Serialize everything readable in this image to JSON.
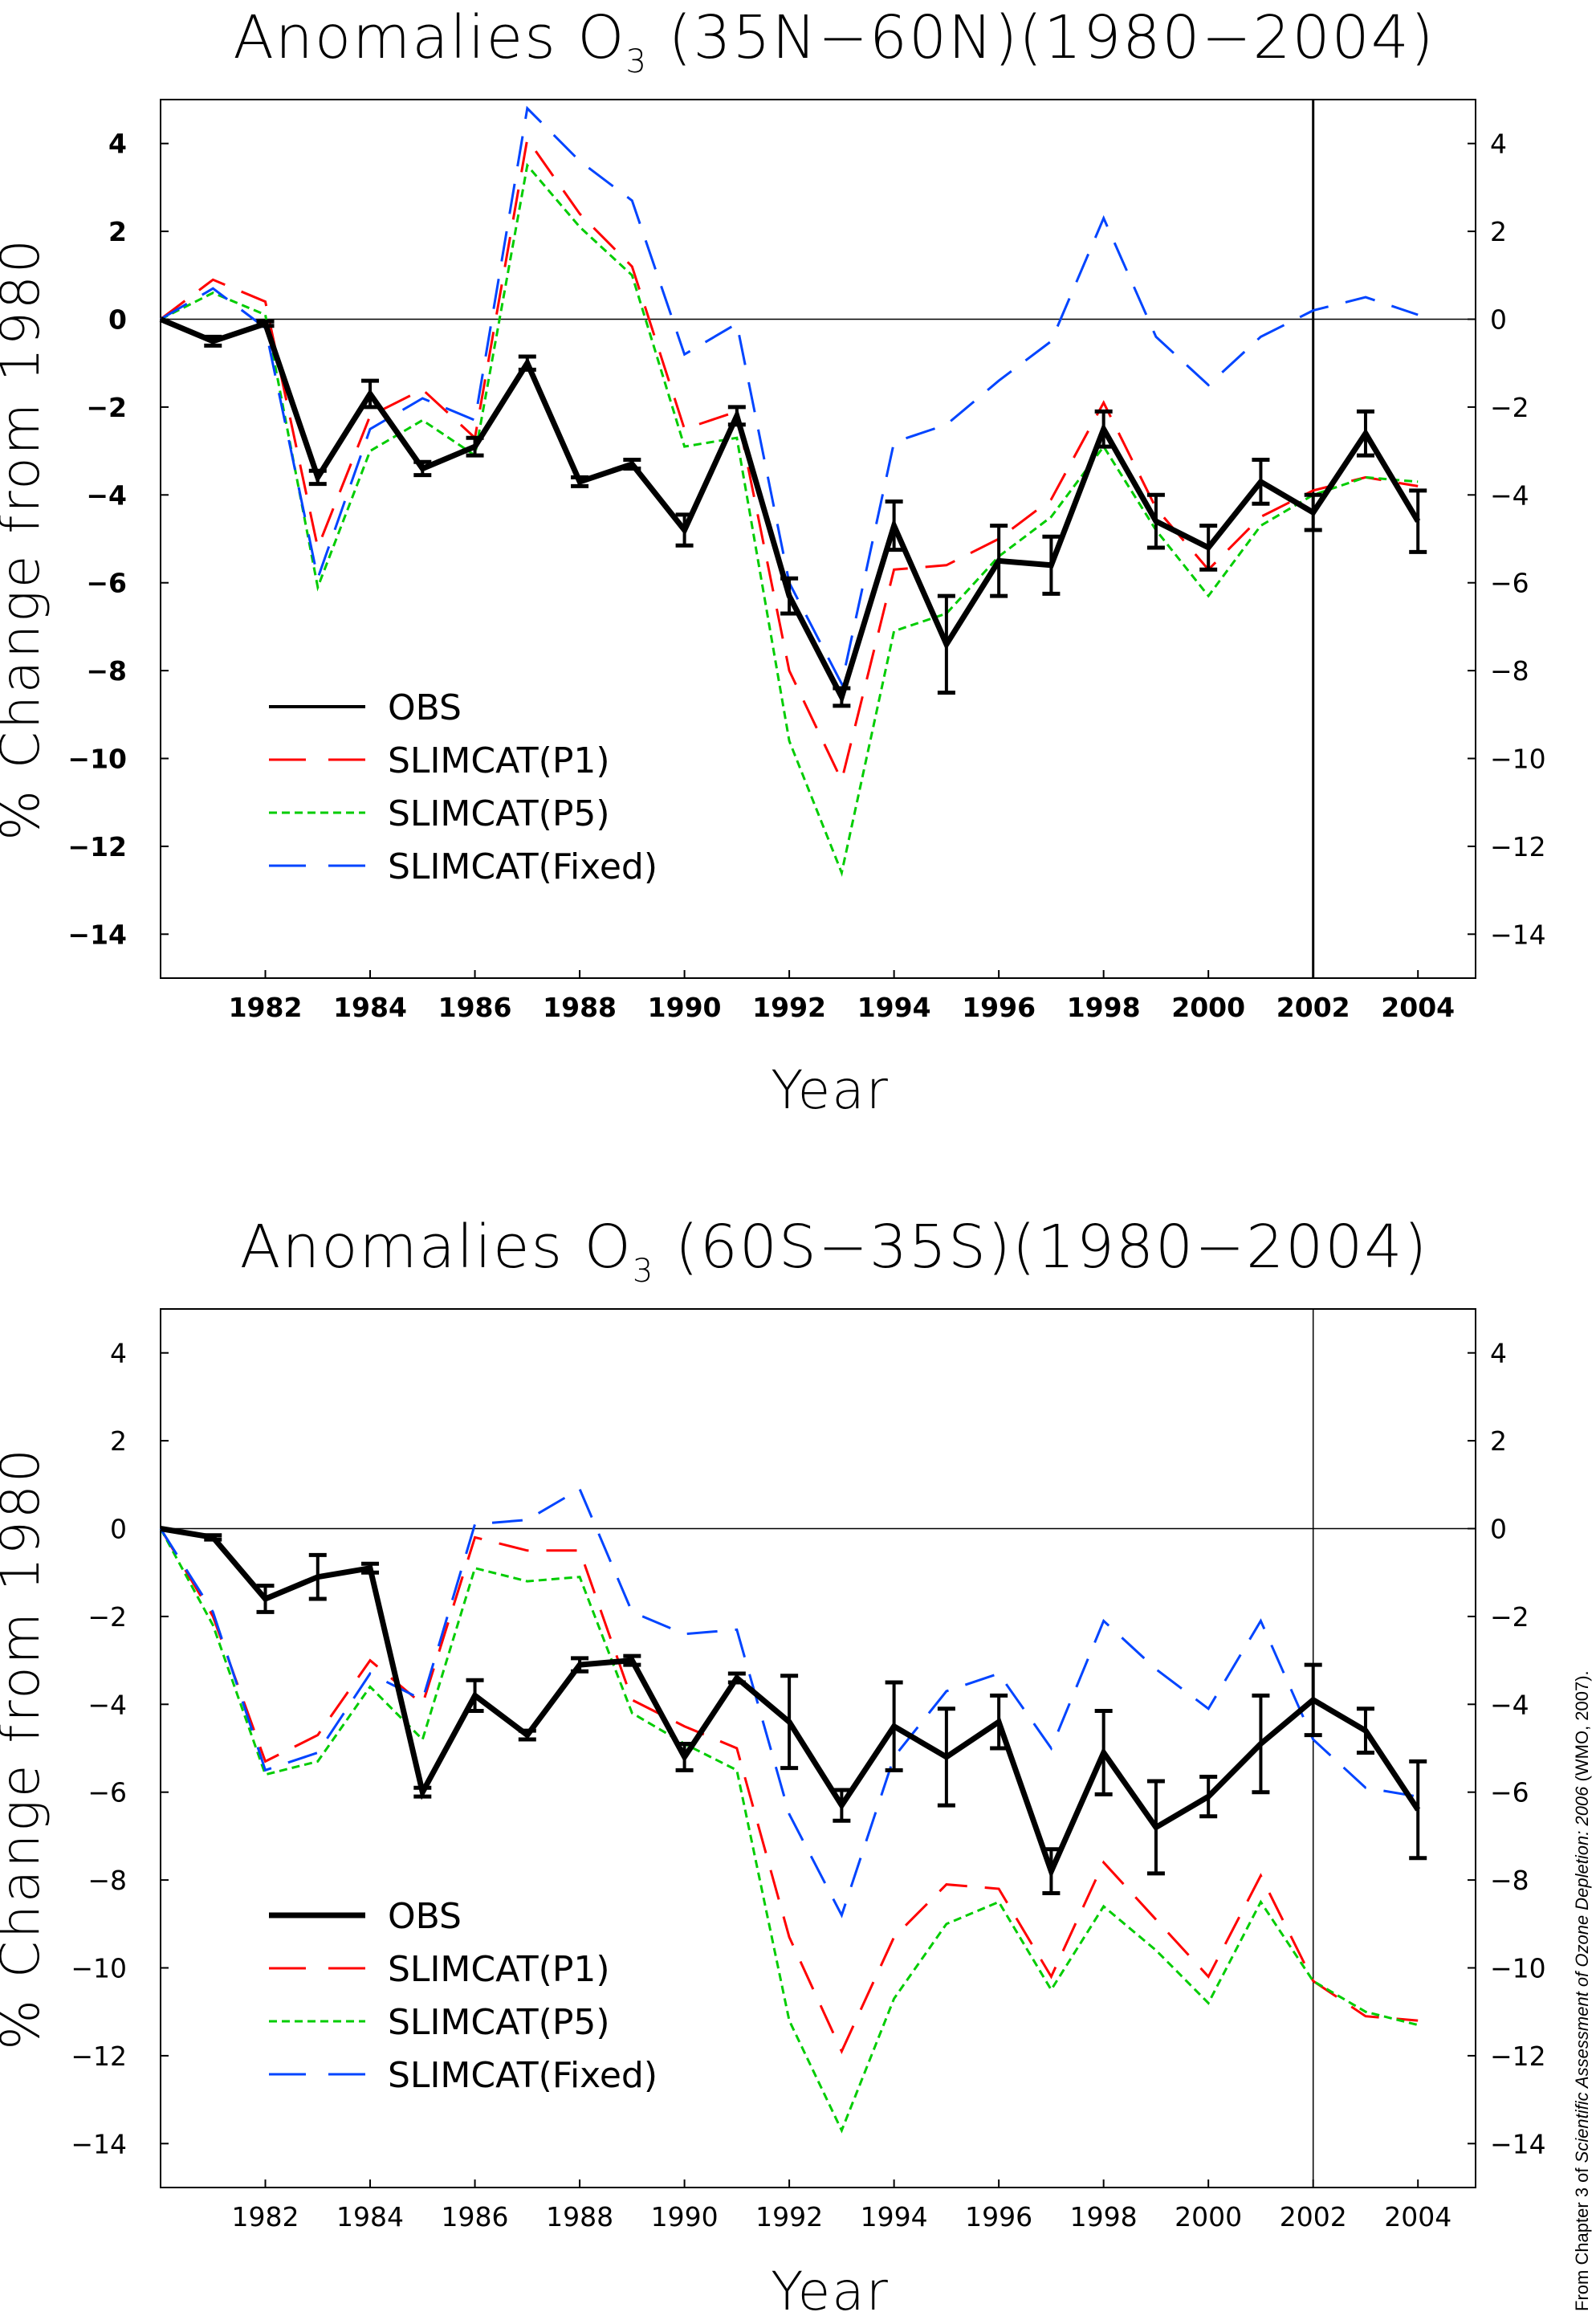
{
  "credit": {
    "prefix": "From Chapter 3 of ",
    "title": "Scientific Assessment of Ozone Depletion: 2006",
    "suffix": " (WMO, 2007)."
  },
  "chart_data": [
    {
      "type": "line",
      "title_main": "Anomalies O",
      "title_sub": "3",
      "title_rest": " (35N−60N)(1980−2004)",
      "xlabel": "Year",
      "ylabel": "% Change from 1980",
      "xlim": [
        1980,
        2005.1
      ],
      "ylim": [
        -15,
        5
      ],
      "xticks": [
        1982,
        1984,
        1986,
        1988,
        1990,
        1992,
        1994,
        1996,
        1998,
        2000,
        2002,
        2004
      ],
      "yticks": [
        4,
        2,
        0,
        -2,
        -4,
        -6,
        -8,
        -10,
        -12,
        -14
      ],
      "vline_x": 2002,
      "zero_line": true,
      "legend_position": "bottom-left",
      "years": [
        1980,
        1981,
        1982,
        1983,
        1984,
        1985,
        1986,
        1987,
        1988,
        1989,
        1990,
        1991,
        1992,
        1993,
        1994,
        1995,
        1996,
        1997,
        1998,
        1999,
        2000,
        2001,
        2002,
        2003,
        2004
      ],
      "series": [
        {
          "name": "SLIMCAT(P1)",
          "color": "#ff0000",
          "dash": "long",
          "values": [
            0,
            0.9,
            0.4,
            -5.2,
            -2.2,
            -1.6,
            -2.7,
            4.1,
            2.4,
            1.2,
            -2.5,
            -2.1,
            -8.0,
            -10.5,
            -5.7,
            -5.6,
            -5.0,
            -4.1,
            -1.9,
            -4.3,
            -5.7,
            -4.5,
            -3.9,
            -3.6,
            -3.8
          ]
        },
        {
          "name": "SLIMCAT(P5)",
          "color": "#00cc00",
          "dash": "short",
          "values": [
            0,
            0.6,
            0.1,
            -6.1,
            -3.0,
            -2.3,
            -3.1,
            3.5,
            2.1,
            1.0,
            -2.9,
            -2.7,
            -9.6,
            -12.6,
            -7.1,
            -6.7,
            -5.4,
            -4.5,
            -2.9,
            -4.8,
            -6.3,
            -4.7,
            -4.0,
            -3.6,
            -3.7
          ]
        },
        {
          "name": "SLIMCAT(Fixed)",
          "color": "#0044ff",
          "dash": "long",
          "values": [
            0,
            0.7,
            -0.2,
            -5.9,
            -2.5,
            -1.8,
            -2.3,
            4.8,
            3.6,
            2.7,
            -0.8,
            -0.1,
            -6.0,
            -8.3,
            -2.8,
            -2.4,
            -1.4,
            -0.5,
            2.3,
            -0.4,
            -1.5,
            -0.4,
            0.2,
            0.5,
            0.1
          ]
        },
        {
          "name": "OBS",
          "color": "#000000",
          "dash": "solid",
          "values": [
            0,
            -0.5,
            -0.1,
            -3.6,
            -1.7,
            -3.4,
            -2.9,
            -1.0,
            -3.7,
            -3.3,
            -4.8,
            -2.2,
            -6.3,
            -8.6,
            -4.7,
            -7.4,
            -5.5,
            -5.6,
            -2.5,
            -4.6,
            -5.2,
            -3.7,
            -4.4,
            -2.6,
            -4.6
          ],
          "errors": [
            0,
            0.1,
            0.05,
            0.15,
            0.3,
            0.15,
            0.2,
            0.15,
            0.1,
            0.1,
            0.35,
            0.2,
            0.4,
            0.2,
            0.55,
            1.1,
            0.8,
            0.65,
            0.4,
            0.6,
            0.5,
            0.5,
            0.4,
            0.5,
            0.7
          ]
        }
      ],
      "legend": [
        "OBS",
        "SLIMCAT(P1)",
        "SLIMCAT(P5)",
        "SLIMCAT(Fixed)"
      ],
      "bold_ticks": true
    },
    {
      "type": "line",
      "title_main": "Anomalies O",
      "title_sub": "3",
      "title_rest": " (60S−35S)(1980−2004)",
      "xlabel": "Year",
      "ylabel": "% Change from 1980",
      "xlim": [
        1980,
        2005.1
      ],
      "ylim": [
        -15,
        5
      ],
      "xticks": [
        1982,
        1984,
        1986,
        1988,
        1990,
        1992,
        1994,
        1996,
        1998,
        2000,
        2002,
        2004
      ],
      "yticks": [
        4,
        2,
        0,
        -2,
        -4,
        -6,
        -8,
        -10,
        -12,
        -14
      ],
      "vline_x": 2002,
      "zero_line": true,
      "legend_position": "bottom-left",
      "years": [
        1980,
        1981,
        1982,
        1983,
        1984,
        1985,
        1986,
        1987,
        1988,
        1989,
        1990,
        1991,
        1992,
        1993,
        1994,
        1995,
        1996,
        1997,
        1998,
        1999,
        2000,
        2001,
        2002,
        2003,
        2004
      ],
      "series": [
        {
          "name": "SLIMCAT(P1)",
          "color": "#ff0000",
          "dash": "long",
          "values": [
            0,
            -2.0,
            -5.3,
            -4.7,
            -3.0,
            -4.0,
            -0.2,
            -0.5,
            -0.5,
            -3.9,
            -4.5,
            -5.0,
            -9.3,
            -11.9,
            -9.3,
            -8.1,
            -8.2,
            -10.2,
            -7.6,
            -8.9,
            -10.2,
            -7.9,
            -10.3,
            -11.1,
            -11.2
          ]
        },
        {
          "name": "SLIMCAT(P5)",
          "color": "#00cc00",
          "dash": "short",
          "values": [
            0,
            -2.2,
            -5.6,
            -5.3,
            -3.6,
            -4.8,
            -0.9,
            -1.2,
            -1.1,
            -4.2,
            -4.9,
            -5.5,
            -11.2,
            -13.7,
            -10.7,
            -9.0,
            -8.5,
            -10.5,
            -8.6,
            -9.6,
            -10.8,
            -8.5,
            -10.3,
            -11.0,
            -11.3
          ]
        },
        {
          "name": "SLIMCAT(Fixed)",
          "color": "#0044ff",
          "dash": "long",
          "values": [
            0,
            -1.9,
            -5.5,
            -5.1,
            -3.3,
            -3.9,
            0.1,
            0.2,
            0.9,
            -1.9,
            -2.4,
            -2.3,
            -6.5,
            -8.8,
            -5.2,
            -3.7,
            -3.3,
            -5.0,
            -2.1,
            -3.2,
            -4.1,
            -2.1,
            -4.8,
            -5.9,
            -6.1
          ]
        },
        {
          "name": "OBS",
          "color": "#000000",
          "dash": "solid",
          "values": [
            0,
            -0.2,
            -1.6,
            -1.1,
            -0.9,
            -6.0,
            -3.8,
            -4.7,
            -3.1,
            -3.0,
            -5.2,
            -3.4,
            -4.4,
            -6.3,
            -4.5,
            -5.2,
            -4.4,
            -7.8,
            -5.1,
            -6.8,
            -6.1,
            -4.9,
            -3.9,
            -4.6,
            -6.4
          ],
          "errors": [
            0,
            0.05,
            0.3,
            0.5,
            0.1,
            0.1,
            0.35,
            0.1,
            0.15,
            0.1,
            0.3,
            0.1,
            1.05,
            0.35,
            1.0,
            1.1,
            0.6,
            0.5,
            0.95,
            1.05,
            0.45,
            1.1,
            0.8,
            0.5,
            1.1
          ]
        }
      ],
      "legend": [
        "OBS",
        "SLIMCAT(P1)",
        "SLIMCAT(P5)",
        "SLIMCAT(Fixed)"
      ],
      "bold_ticks": false
    }
  ]
}
